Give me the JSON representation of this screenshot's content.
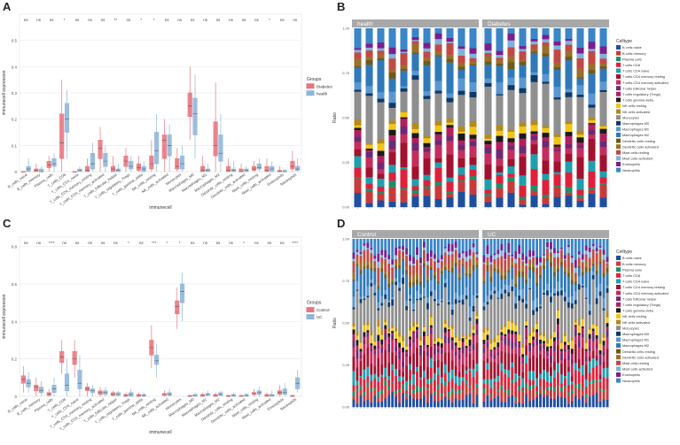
{
  "panel_labels": [
    "A",
    "B",
    "C",
    "D"
  ],
  "colors": {
    "diabetes": "#e8767e",
    "health": "#8eb5dc",
    "control": "#e8767e",
    "uc": "#8eb5dc",
    "strip_bg": "#a8a8a8",
    "grid": "#e4e4e4"
  },
  "celltypes": [
    "B cells naive",
    "B cells memory",
    "Plasma cells",
    "T cells CD8",
    "T cells CD4 naive",
    "T cells CD4 memory resting",
    "T cells CD4 memory activated",
    "T cells follicular helper",
    "T cells regulatory (Tregs)",
    "T cells gamma delta",
    "NK cells resting",
    "NK cells activated",
    "Monocytes",
    "Macrophages M0",
    "Macrophages M1",
    "Macrophages M2",
    "Dendritic cells resting",
    "Dendritic cells activated",
    "Mast cells resting",
    "Mast cells activated",
    "Eosinophils",
    "Neutrophils"
  ],
  "celltype_colors": [
    "#1f4e9e",
    "#c83a3a",
    "#1b8f6b",
    "#e0203a",
    "#1f9fae",
    "#a1122e",
    "#c42d5c",
    "#6b2a73",
    "#b21f5c",
    "#1a1a1a",
    "#f2c416",
    "#b58a1b",
    "#8f8f8f",
    "#0f3a66",
    "#5a96d2",
    "#2f79b8",
    "#6e5a1e",
    "#9a6f2a",
    "#c04a43",
    "#7fb0de",
    "#7a1f8c",
    "#3a86c8"
  ],
  "chart_data": [
    {
      "panel": "A",
      "type": "box",
      "xlabel": "immunecell",
      "ylabel": "immunecell expression",
      "ylim": [
        0,
        0.6
      ],
      "yticks": [
        0,
        0.1,
        0.2,
        0.3,
        0.4,
        0.5
      ],
      "legend_title": "Groups",
      "legend": [
        "Diabetes",
        "health"
      ],
      "categories": [
        "B_cells_naive",
        "B_cells_memory",
        "Plasma_cells",
        "T_cells_CD8",
        "T_cells_CD4_naive",
        "T_cells_CD4_memory_resting",
        "T_cells_CD4_memory_activated",
        "T_cells_follicular_helper",
        "T_cells_regulatory_Tregs",
        "T_cells_gamma_delta",
        "NK_cells_resting",
        "NK_cells_activated",
        "Monocytes",
        "Macrophages_M0",
        "Macrophages_M1",
        "Macrophages_M2",
        "Dendritic_cells_resting",
        "Dendritic_cells_activated",
        "Mast_cells_resting",
        "Mast_cells_activated",
        "Eosinophils",
        "Neutrophils"
      ],
      "significance": [
        "ns",
        "ns",
        "ns",
        "*",
        "ns",
        "ns",
        "ns",
        "**",
        "ns",
        "*",
        "*",
        "ns",
        "ns",
        "ns",
        "ns",
        "ns",
        "ns",
        "ns",
        "ns",
        "*",
        "ns",
        "ns"
      ],
      "series": [
        {
          "name": "Diabetes",
          "boxes": [
            [
              0,
              0,
              0,
              0,
              0
            ],
            [
              0,
              0,
              0.005,
              0.01,
              0.03
            ],
            [
              0,
              0.015,
              0.025,
              0.04,
              0.06
            ],
            [
              0,
              0.05,
              0.11,
              0.22,
              0.35
            ],
            [
              0,
              0,
              0,
              0,
              0
            ],
            [
              0,
              0,
              0.005,
              0.02,
              0.05
            ],
            [
              0,
              0.05,
              0.09,
              0.12,
              0.17
            ],
            [
              0,
              0,
              0.01,
              0.02,
              0.06
            ],
            [
              0,
              0.02,
              0.04,
              0.06,
              0.09
            ],
            [
              0,
              0.005,
              0.015,
              0.03,
              0.06
            ],
            [
              0,
              0.01,
              0.03,
              0.06,
              0.12
            ],
            [
              0,
              0.05,
              0.12,
              0.14,
              0.2
            ],
            [
              0,
              0.01,
              0.02,
              0.05,
              0.09
            ],
            [
              0.12,
              0.21,
              0.25,
              0.3,
              0.4
            ],
            [
              0,
              0,
              0.005,
              0.02,
              0.06
            ],
            [
              0,
              0.06,
              0.1,
              0.19,
              0.34
            ],
            [
              0,
              0,
              0.005,
              0.02,
              0.05
            ],
            [
              0,
              0,
              0,
              0.01,
              0.03
            ],
            [
              0,
              0.005,
              0.01,
              0.02,
              0.04
            ],
            [
              0,
              0,
              0.005,
              0.02,
              0.05
            ],
            [
              0,
              0,
              0,
              0.005,
              0.02
            ],
            [
              0,
              0.01,
              0.02,
              0.04,
              0.08
            ]
          ]
        },
        {
          "name": "health",
          "boxes": [
            [
              0,
              0,
              0.01,
              0.02,
              0.05
            ],
            [
              0,
              0,
              0,
              0.01,
              0.02
            ],
            [
              0,
              0.02,
              0.03,
              0.05,
              0.07
            ],
            [
              0.05,
              0.15,
              0.2,
              0.26,
              0.31
            ],
            [
              0,
              0,
              0.005,
              0.01,
              0.02
            ],
            [
              0,
              0.01,
              0.03,
              0.07,
              0.11
            ],
            [
              0,
              0.02,
              0.04,
              0.07,
              0.1
            ],
            [
              0,
              0,
              0.005,
              0.01,
              0.03
            ],
            [
              0,
              0.01,
              0.02,
              0.04,
              0.06
            ],
            [
              0,
              0,
              0.01,
              0.02,
              0.04
            ],
            [
              0,
              0.03,
              0.08,
              0.15,
              0.22
            ],
            [
              0,
              0.06,
              0.1,
              0.14,
              0.18
            ],
            [
              0,
              0.01,
              0.03,
              0.06,
              0.1
            ],
            [
              0.05,
              0.14,
              0.22,
              0.28,
              0.37
            ],
            [
              0,
              0,
              0.005,
              0.01,
              0.03
            ],
            [
              0,
              0.04,
              0.07,
              0.14,
              0.22
            ],
            [
              0,
              0,
              0.005,
              0.01,
              0.04
            ],
            [
              0,
              0,
              0.005,
              0.01,
              0.02
            ],
            [
              0,
              0.01,
              0.015,
              0.03,
              0.05
            ],
            [
              0,
              0,
              0.01,
              0.02,
              0.04
            ],
            [
              0,
              0,
              0,
              0.005,
              0.01
            ],
            [
              0,
              0.005,
              0.01,
              0.02,
              0.05
            ]
          ]
        }
      ]
    },
    {
      "panel": "B",
      "type": "stacked-bar",
      "facets": [
        "health",
        "Diabetes"
      ],
      "bars_per_facet": 11,
      "ylabel": "Ratio",
      "ylim": [
        0,
        1
      ],
      "yticks": [
        "0.00",
        "0.25",
        "0.50",
        "0.75",
        "1.00"
      ],
      "legend_title": "Celltype"
    },
    {
      "panel": "C",
      "type": "box",
      "xlabel": "immunecell",
      "ylabel": "immunecell expression",
      "ylim": [
        0,
        0.85
      ],
      "yticks": [
        0,
        0.2,
        0.4,
        0.6,
        0.8
      ],
      "legend_title": "Groups",
      "legend": [
        "Control",
        "UC"
      ],
      "categories": [
        "B_cells_naive",
        "B_cells_memory",
        "Plasma_cells",
        "T_cells_CD8",
        "T_cells_CD4_naive",
        "T_cells_CD4_memory_resting",
        "T_cells_CD4_memory_activated",
        "T_cells_follicular_helper",
        "T_cells_regulatory_Tregs",
        "T_cells_gamma_delta",
        "NK_cells_resting",
        "NK_cells_activated",
        "Monocytes",
        "Macrophages_M0",
        "Macrophages_M1",
        "Macrophages_M2",
        "Dendritic_cells_resting",
        "Dendritic_cells_activated",
        "Mast_cells_resting",
        "Mast_cells_activated",
        "Eosinophils",
        "Neutrophils"
      ],
      "significance": [
        "ns",
        "ns",
        "****",
        "ns",
        "ns",
        "ns",
        "ns",
        "ns",
        "*",
        "ns",
        "***",
        "*",
        "*",
        "ns",
        "ns",
        "ns",
        "ns",
        "*",
        "ns",
        "ns",
        "ns",
        "****"
      ],
      "series": [
        {
          "name": "Control",
          "boxes": [
            [
              0.02,
              0.07,
              0.09,
              0.11,
              0.16
            ],
            [
              0,
              0.03,
              0.05,
              0.06,
              0.1
            ],
            [
              0,
              0.005,
              0.01,
              0.02,
              0.04
            ],
            [
              0.12,
              0.18,
              0.21,
              0.24,
              0.3
            ],
            [
              0.1,
              0.17,
              0.2,
              0.24,
              0.3
            ],
            [
              0,
              0.03,
              0.04,
              0.05,
              0.07
            ],
            [
              0,
              0.01,
              0.02,
              0.03,
              0.05
            ],
            [
              0,
              0.005,
              0.01,
              0.02,
              0.03
            ],
            [
              0,
              0,
              0.005,
              0.01,
              0.02
            ],
            [
              0,
              0,
              0.005,
              0.01,
              0.02
            ],
            [
              0.15,
              0.22,
              0.26,
              0.3,
              0.38
            ],
            [
              0,
              0.005,
              0.01,
              0.015,
              0.03
            ],
            [
              0.36,
              0.44,
              0.48,
              0.51,
              0.58
            ],
            [
              0,
              0,
              0,
              0.005,
              0.01
            ],
            [
              0,
              0,
              0.005,
              0.01,
              0.02
            ],
            [
              0,
              0,
              0.005,
              0.01,
              0.02
            ],
            [
              0,
              0,
              0,
              0.005,
              0.01
            ],
            [
              0,
              0,
              0,
              0.005,
              0.01
            ],
            [
              0,
              0.01,
              0.015,
              0.02,
              0.04
            ],
            [
              0,
              0,
              0.005,
              0.01,
              0.02
            ],
            [
              0,
              0.01,
              0.02,
              0.03,
              0.06
            ],
            [
              0,
              0,
              0,
              0.005,
              0.01
            ]
          ]
        },
        {
          "name": "UC",
          "boxes": [
            [
              0.02,
              0.05,
              0.07,
              0.09,
              0.13
            ],
            [
              0,
              0.02,
              0.03,
              0.05,
              0.08
            ],
            [
              0,
              0.02,
              0.04,
              0.06,
              0.1
            ],
            [
              0,
              0.03,
              0.06,
              0.12,
              0.2
            ],
            [
              0,
              0.04,
              0.07,
              0.14,
              0.22
            ],
            [
              0,
              0.02,
              0.03,
              0.04,
              0.06
            ],
            [
              0,
              0.01,
              0.02,
              0.03,
              0.05
            ],
            [
              0,
              0.005,
              0.01,
              0.02,
              0.03
            ],
            [
              0,
              0,
              0.01,
              0.02,
              0.04
            ],
            [
              0,
              0,
              0.005,
              0.01,
              0.02
            ],
            [
              0.1,
              0.17,
              0.19,
              0.22,
              0.28
            ],
            [
              0,
              0.005,
              0.01,
              0.02,
              0.04
            ],
            [
              0.4,
              0.5,
              0.56,
              0.6,
              0.66
            ],
            [
              0,
              0,
              0.005,
              0.01,
              0.02
            ],
            [
              0,
              0.005,
              0.01,
              0.015,
              0.03
            ],
            [
              0,
              0.005,
              0.01,
              0.02,
              0.03
            ],
            [
              0,
              0,
              0.005,
              0.01,
              0.02
            ],
            [
              0,
              0,
              0.005,
              0.01,
              0.02
            ],
            [
              0,
              0.01,
              0.02,
              0.03,
              0.05
            ],
            [
              0,
              0,
              0.005,
              0.01,
              0.03
            ],
            [
              0,
              0.01,
              0.02,
              0.04,
              0.07
            ],
            [
              0.02,
              0.04,
              0.07,
              0.1,
              0.14
            ]
          ]
        }
      ]
    },
    {
      "panel": "D",
      "type": "stacked-bar",
      "facets": [
        "Control",
        "UC"
      ],
      "bars_per_facet": 36,
      "ylabel": "Ratio",
      "ylim": [
        0,
        1
      ],
      "yticks": [
        "0.00",
        "0.25",
        "0.50",
        "0.75",
        "1.00"
      ],
      "legend_title": "Celltype"
    }
  ]
}
